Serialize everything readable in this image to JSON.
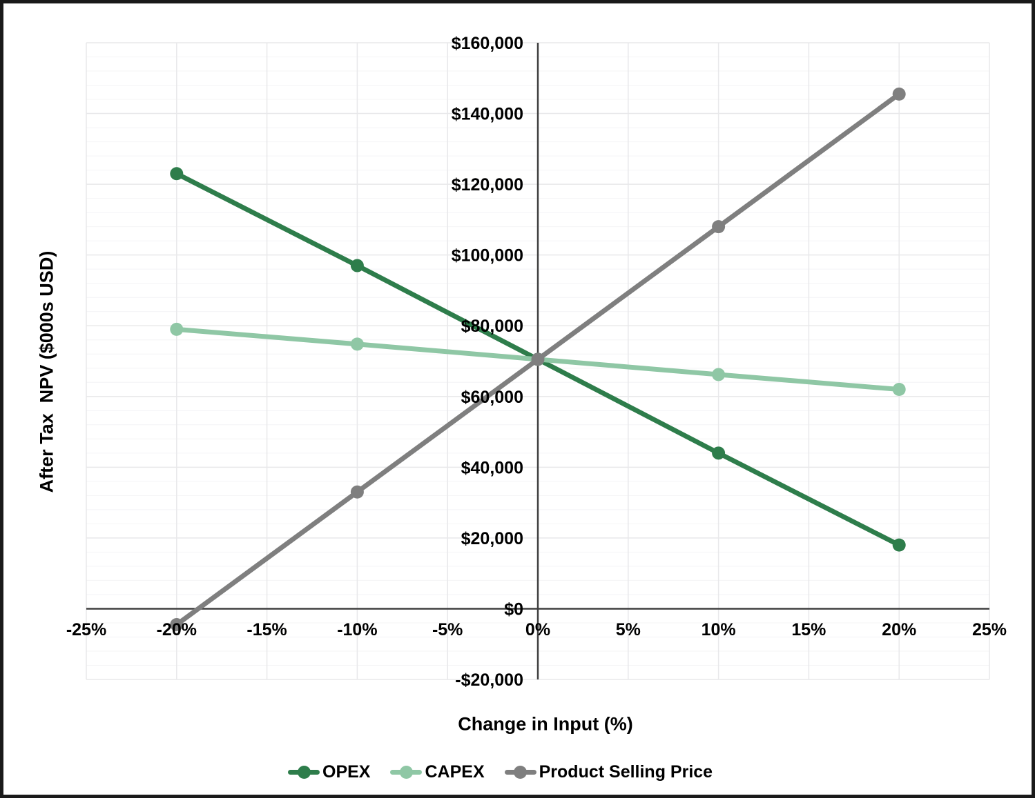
{
  "chart_data": {
    "type": "line",
    "title": "",
    "xlabel": "Change in Input (%)",
    "ylabel": "After Tax  NPV ($000s USD)",
    "xlim": [
      -25,
      25
    ],
    "ylim": [
      -20000,
      160000
    ],
    "y_major_unit": 20000,
    "y_minor_unit": 4000,
    "grid": true,
    "legend_position": "bottom",
    "x_tick_values": [
      -25,
      -20,
      -15,
      -10,
      -5,
      0,
      5,
      10,
      15,
      20,
      25
    ],
    "x_tick_labels": [
      "-25%",
      "-20%",
      "-15%",
      "-10%",
      "-5%",
      "0%",
      "5%",
      "10%",
      "15%",
      "20%",
      "25%"
    ],
    "y_tick_values": [
      160000,
      140000,
      120000,
      100000,
      80000,
      60000,
      40000,
      20000,
      0,
      -20000
    ],
    "y_tick_labels": [
      "$160,000",
      "$140,000",
      "$120,000",
      "$100,000",
      "$80,000",
      "$60,000",
      "$40,000",
      "$20,000",
      "$0",
      "-$20,000"
    ],
    "x": [
      -20,
      -10,
      0,
      10,
      20
    ],
    "series": [
      {
        "name": "OPEX",
        "color": "#2E7D4B",
        "values": [
          123000,
          97000,
          70500,
          44000,
          18000
        ]
      },
      {
        "name": "CAPEX",
        "color": "#8FC7A5",
        "values": [
          79000,
          74800,
          70500,
          66200,
          62000
        ]
      },
      {
        "name": "Product Selling Price",
        "color": "#7F7F7F",
        "values": [
          -4500,
          33000,
          70500,
          108000,
          145500
        ]
      }
    ],
    "colors": {
      "axis_line": "#3F3F3F",
      "major_grid": "#E8E8EA",
      "minor_grid": "#F4F4F6",
      "tick_text": "#000000",
      "frame_border": "#1A1A1A"
    }
  }
}
